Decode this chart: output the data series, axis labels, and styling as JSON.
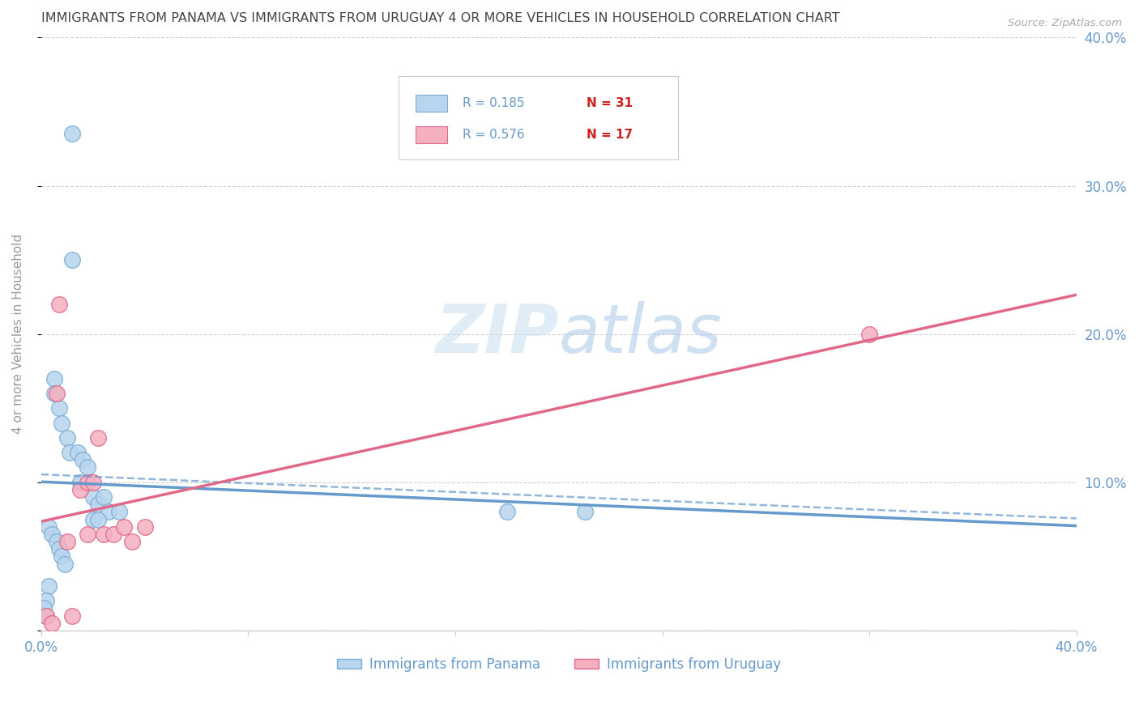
{
  "title": "IMMIGRANTS FROM PANAMA VS IMMIGRANTS FROM URUGUAY 4 OR MORE VEHICLES IN HOUSEHOLD CORRELATION CHART",
  "source": "Source: ZipAtlas.com",
  "ylabel": "4 or more Vehicles in Household",
  "xlim": [
    0.0,
    0.4
  ],
  "ylim": [
    0.0,
    0.4
  ],
  "xticks": [
    0.0,
    0.08,
    0.16,
    0.24,
    0.32,
    0.4
  ],
  "xticklabels": [
    "0.0%",
    "",
    "",
    "",
    "",
    "40.0%"
  ],
  "yticks": [
    0.0,
    0.1,
    0.2,
    0.3,
    0.4
  ],
  "yticklabels_right": [
    "",
    "10.0%",
    "20.0%",
    "30.0%",
    "40.0%"
  ],
  "panama_r": 0.185,
  "panama_n": 31,
  "uruguay_r": 0.576,
  "uruguay_n": 17,
  "panama_scatter_color": "#b8d4ee",
  "panama_scatter_edge": "#7aafd4",
  "panama_line_color": "#6699cc",
  "uruguay_scatter_color": "#f5b0c0",
  "uruguay_scatter_edge": "#e06888",
  "uruguay_line_color": "#e06888",
  "axis_label_color": "#6699cc",
  "grid_color": "#cccccc",
  "background_color": "#ffffff",
  "title_color": "#444444",
  "watermark_color": "#c8dff0",
  "legend_panama_label": "Immigrants from Panama",
  "legend_uruguay_label": "Immigrants from Uruguay",
  "panama_x": [
    0.012,
    0.012,
    0.005,
    0.005,
    0.007,
    0.008,
    0.01,
    0.011,
    0.014,
    0.016,
    0.018,
    0.02,
    0.022,
    0.024,
    0.026,
    0.015,
    0.02,
    0.022,
    0.003,
    0.004,
    0.006,
    0.007,
    0.008,
    0.009,
    0.003,
    0.002,
    0.001,
    0.002,
    0.21,
    0.03,
    0.18
  ],
  "panama_y": [
    0.335,
    0.25,
    0.17,
    0.16,
    0.15,
    0.14,
    0.13,
    0.12,
    0.12,
    0.115,
    0.11,
    0.09,
    0.085,
    0.09,
    0.08,
    0.1,
    0.075,
    0.075,
    0.07,
    0.065,
    0.06,
    0.055,
    0.05,
    0.045,
    0.03,
    0.02,
    0.015,
    0.01,
    0.08,
    0.08,
    0.08
  ],
  "uruguay_x": [
    0.002,
    0.004,
    0.007,
    0.01,
    0.012,
    0.015,
    0.018,
    0.02,
    0.022,
    0.024,
    0.028,
    0.032,
    0.018,
    0.035,
    0.04,
    0.32,
    0.006
  ],
  "uruguay_y": [
    0.01,
    0.005,
    0.22,
    0.06,
    0.01,
    0.095,
    0.1,
    0.1,
    0.13,
    0.065,
    0.065,
    0.07,
    0.065,
    0.06,
    0.07,
    0.2,
    0.16
  ]
}
